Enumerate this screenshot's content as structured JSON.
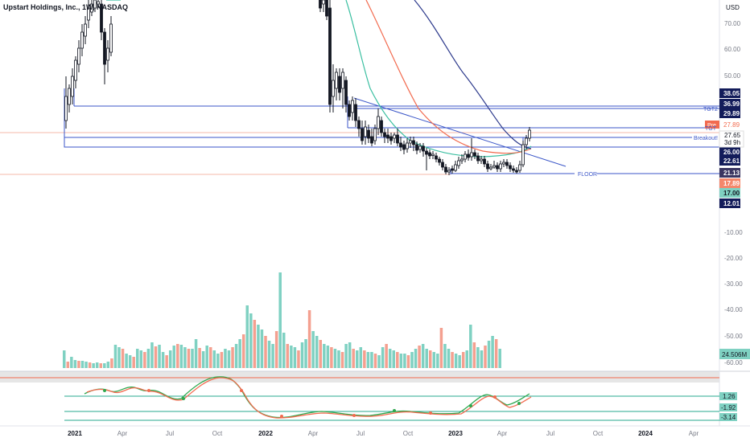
{
  "header": {
    "title": "Upstart Holdings, Inc., 1W, NASDAQ"
  },
  "price_axis": {
    "currency": "USD",
    "ticks": [
      "70.00",
      "60.00",
      "50.00",
      "-10.00",
      "-20.00",
      "-30.00",
      "-40.00",
      "-50.00",
      "-60.00"
    ],
    "tick_values": [
      70,
      60,
      50,
      -10,
      -20,
      -30,
      -40,
      -50,
      -60
    ]
  },
  "price_labels": [
    {
      "text": "38.05",
      "value": 38.05,
      "bg": "#131c5a",
      "fg": "#ffffff"
    },
    {
      "text": "36.99",
      "value": 36.99,
      "bg": "#131c5a",
      "fg": "#ffffff"
    },
    {
      "text": "29.89",
      "value": 29.89,
      "bg": "#131c5a",
      "fg": "#ffffff"
    },
    {
      "text": "27.89",
      "value": 27.89,
      "bg": "#ffffff",
      "fg": "#f26b4f"
    },
    {
      "text": "26.00",
      "value": 26.0,
      "bg": "#131c5a",
      "fg": "#ffffff"
    },
    {
      "text": "22.61",
      "value": 22.61,
      "bg": "#131c5a",
      "fg": "#ffffff"
    },
    {
      "text": "21.13",
      "value": 21.13,
      "bg": "#3a3560",
      "fg": "#ffffff"
    },
    {
      "text": "17.89",
      "value": 17.89,
      "bg": "#f4876b",
      "fg": "#ffffff"
    },
    {
      "text": "17.00",
      "value": 17.0,
      "bg": "#7fd1c2",
      "fg": "#131722"
    },
    {
      "text": "12.01",
      "value": 12.01,
      "bg": "#131c5a",
      "fg": "#ffffff"
    }
  ],
  "last_price": {
    "value": "27.65",
    "countdown": "3d 9h",
    "tag": "Pre"
  },
  "annotations": [
    {
      "text": "TGT2",
      "value": 36.99
    },
    {
      "text": "TGT",
      "value": 29.89
    },
    {
      "text": "Breakout!",
      "value": 26.0
    },
    {
      "text": "FLOOR",
      "value": 21.13
    }
  ],
  "volume_label": "24.506M",
  "oscillator_labels": [
    {
      "text": "1.26",
      "bg": "#7fd1c2"
    },
    {
      "text": "-1.92",
      "bg": "#7fd1c2"
    },
    {
      "text": "-3.14",
      "bg": "#7fd1c2"
    }
  ],
  "time_axis": [
    "2021",
    "Apr",
    "Jul",
    "Oct",
    "2022",
    "Apr",
    "Jul",
    "Oct",
    "2023",
    "Apr",
    "Jul",
    "Oct",
    "2024",
    "Apr"
  ],
  "time_axis_bold": [
    "2021",
    "2022",
    "2023",
    "2024"
  ],
  "chart_data": {
    "type": "candlestick",
    "title": "Upstart Holdings, Inc., 1W, NASDAQ",
    "interval": "1W",
    "y_unit": "USD",
    "y_scale": "logarithmic",
    "horizontal_levels": [
      38.05,
      36.99,
      29.89,
      26.0,
      22.61,
      21.13,
      17.89,
      17.0,
      12.01
    ],
    "last_close": 27.65,
    "series": [
      {
        "name": "candles_close_approx",
        "x": [
          "2022-04",
          "2022-05",
          "2022-06",
          "2022-07",
          "2022-08",
          "2022-09",
          "2022-10",
          "2022-11",
          "2022-12",
          "2023-01",
          "2023-02",
          "2023-03",
          "2023-04",
          "2023-05"
        ],
        "values": [
          90,
          40,
          30,
          27,
          31,
          25,
          21,
          17,
          14,
          17,
          19,
          15,
          14,
          27.65
        ]
      },
      {
        "name": "volume",
        "unit": "shares",
        "last": "24.506M"
      },
      {
        "name": "oscillator",
        "values_last": [
          1.26,
          -1.92,
          -3.14
        ]
      }
    ]
  }
}
